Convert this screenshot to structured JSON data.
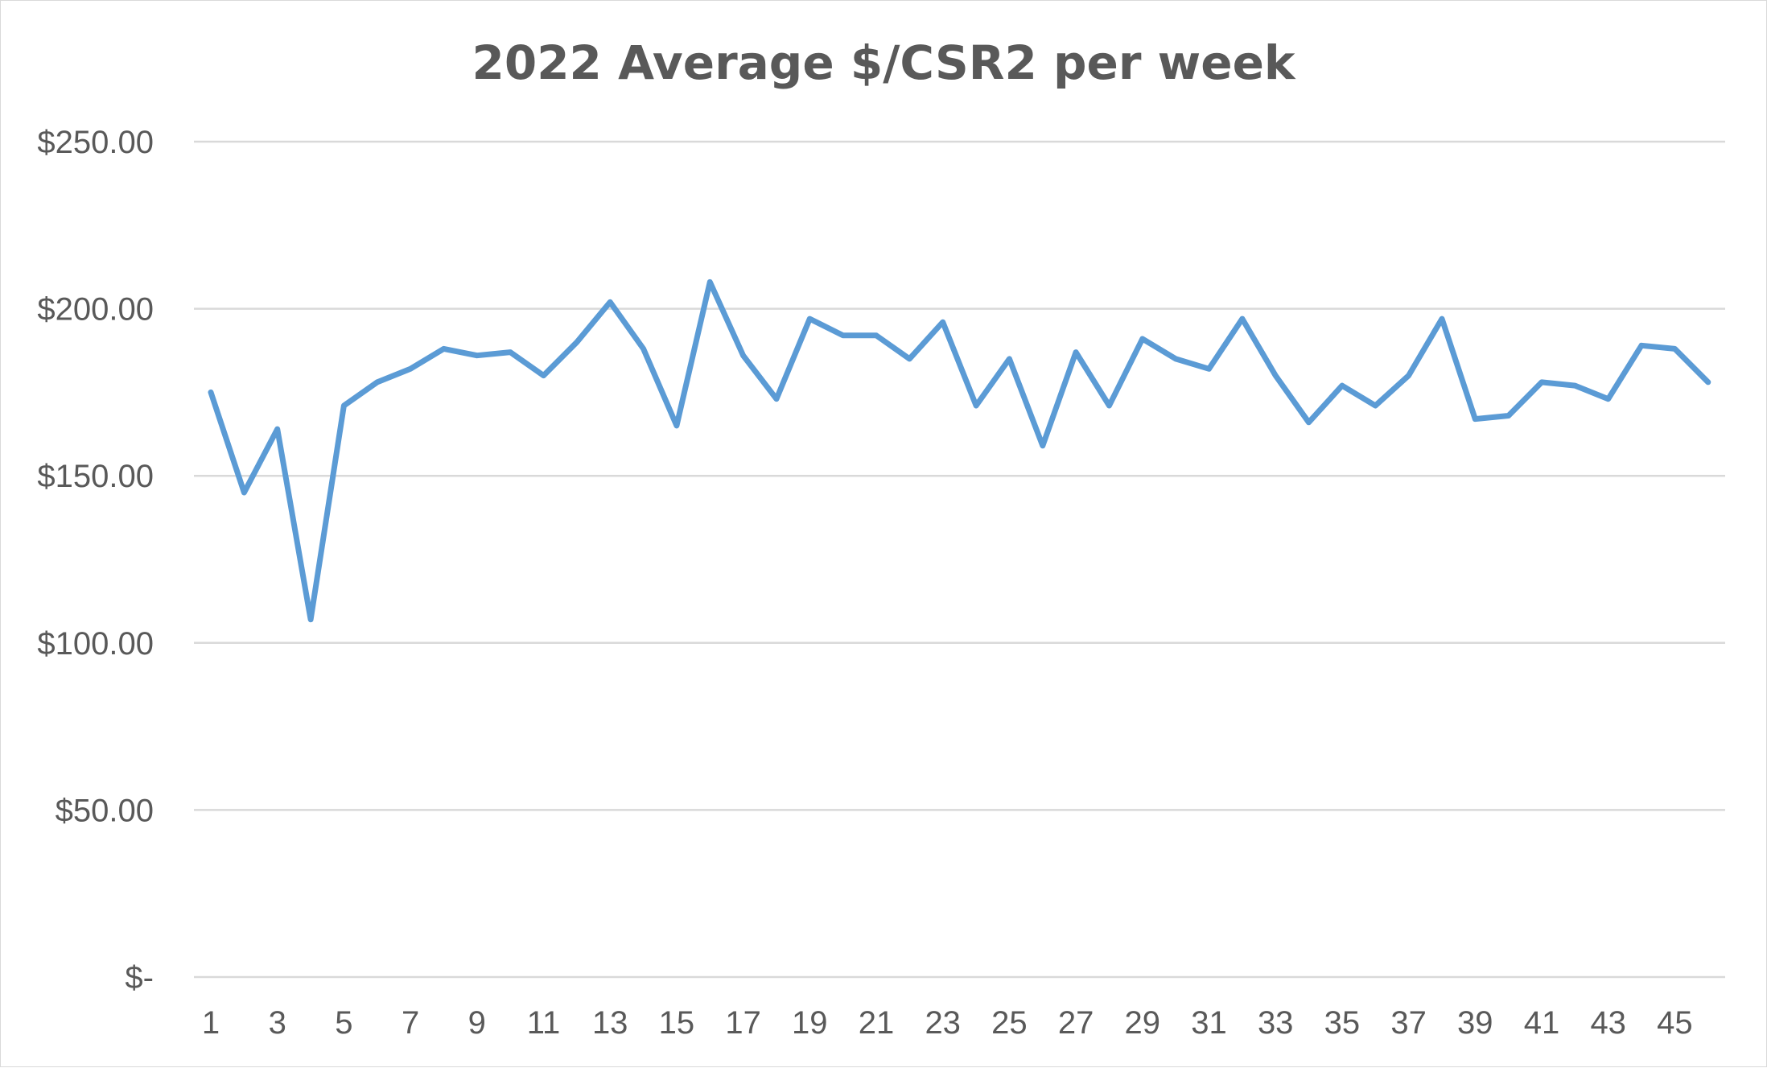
{
  "chart_data": {
    "type": "line",
    "title": "2022 Average $/CSR2 per week",
    "xlabel": "",
    "ylabel": "",
    "ylim": [
      0,
      250
    ],
    "yticks": [
      {
        "value": 0,
        "label": "$-"
      },
      {
        "value": 50,
        "label": "$50.00"
      },
      {
        "value": 100,
        "label": "$100.00"
      },
      {
        "value": 150,
        "label": "$150.00"
      },
      {
        "value": 200,
        "label": "$200.00"
      },
      {
        "value": 250,
        "label": "$250.00"
      }
    ],
    "xtick_labels": [
      "1",
      "3",
      "5",
      "7",
      "9",
      "11",
      "13",
      "15",
      "17",
      "19",
      "21",
      "23",
      "25",
      "27",
      "29",
      "31",
      "33",
      "35",
      "37",
      "39",
      "41",
      "43",
      "45"
    ],
    "grid": true,
    "legend": "none",
    "color": "#5b9bd5",
    "series": [
      {
        "x": [
          1,
          2,
          3,
          4,
          5,
          6,
          7,
          8,
          9,
          10,
          11,
          12,
          13,
          14,
          15,
          16,
          17,
          18,
          19,
          20,
          21,
          22,
          23,
          24,
          25,
          26,
          27,
          28,
          29,
          30,
          31,
          32,
          33,
          34,
          35,
          36,
          37,
          38,
          39,
          40,
          41,
          42,
          43,
          44,
          45,
          46
        ],
        "values": [
          175,
          145,
          164,
          107,
          171,
          178,
          182,
          188,
          186,
          187,
          180,
          190,
          202,
          188,
          165,
          208,
          186,
          173,
          197,
          192,
          192,
          185,
          196,
          171,
          185,
          159,
          187,
          171,
          191,
          185,
          182,
          197,
          180,
          166,
          177,
          171,
          180,
          197,
          167,
          168,
          178,
          177,
          173,
          189,
          188,
          178
        ]
      }
    ]
  }
}
